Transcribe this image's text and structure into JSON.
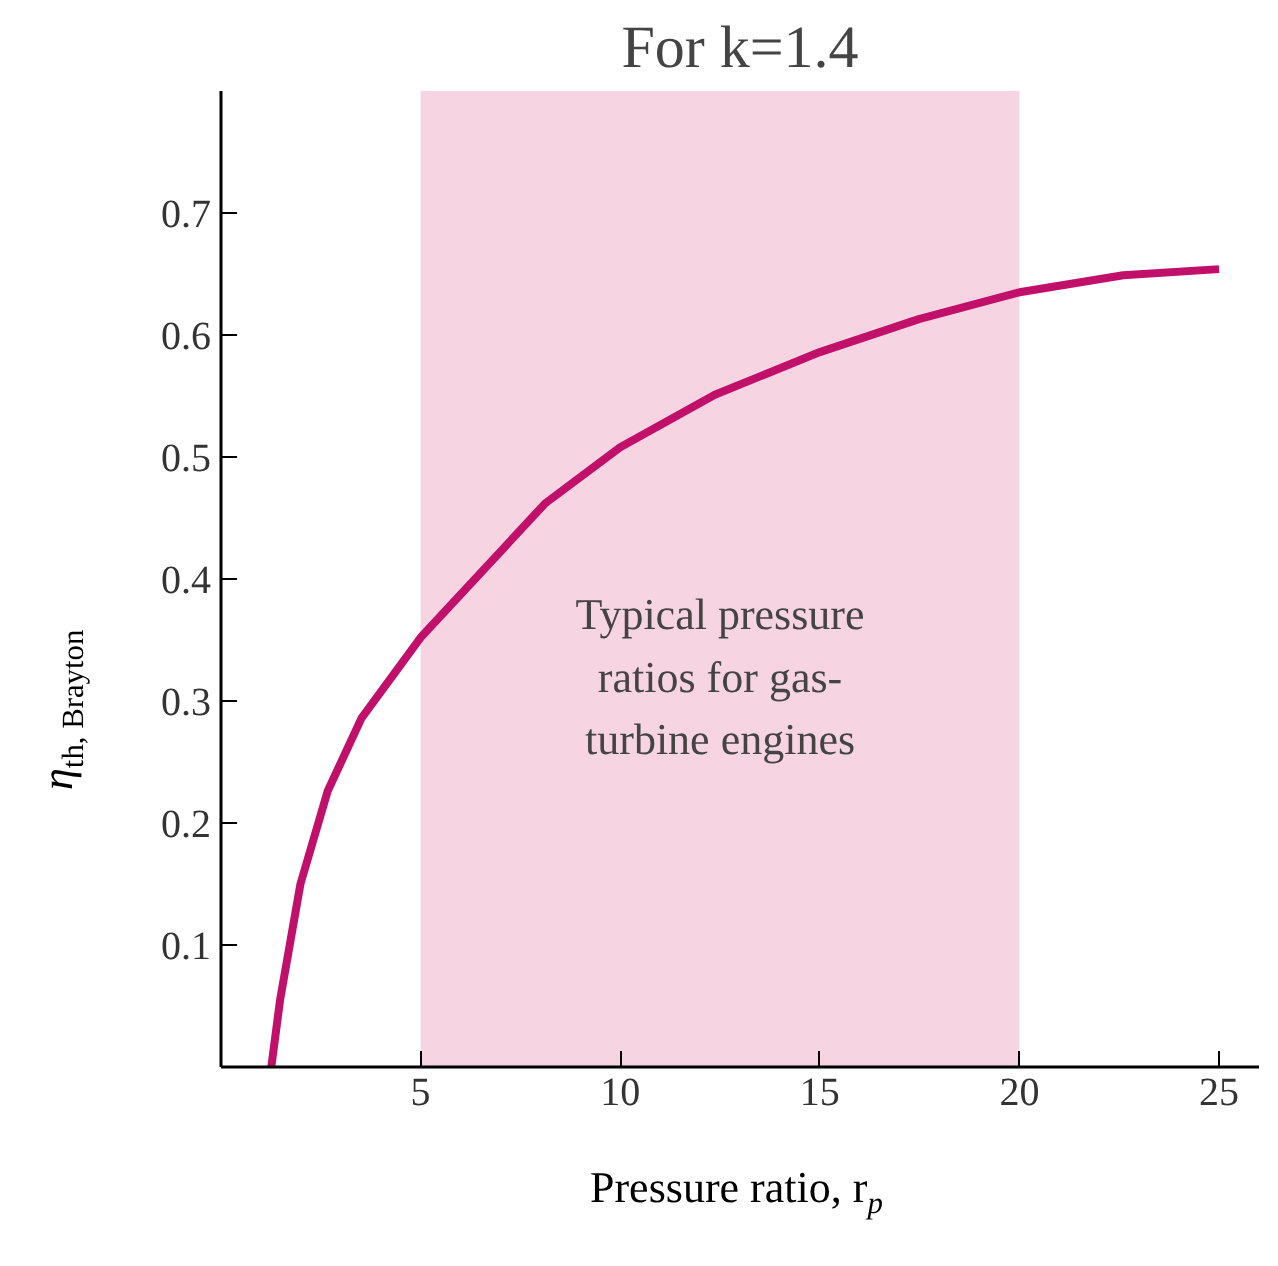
{
  "chart_data": {
    "type": "line",
    "title": "For k=1.4",
    "xlabel": "Pressure ratio, r$_{p}$",
    "ylabel": "η$_{th, Brayton}$",
    "x": [
      1.26,
      1.48,
      1.99,
      2.67,
      3.52,
      5.0,
      6.42,
      8.12,
      10,
      12.37,
      15,
      17.48,
      20,
      22.6,
      25
    ],
    "series": [
      {
        "color": "#c0106a",
        "values": [
          0,
          0.055,
          0.15,
          0.226,
          0.286,
          0.352,
          0.402,
          0.462,
          0.508,
          0.551,
          0.586,
          0.613,
          0.635,
          0.649,
          0.654
        ]
      }
    ],
    "xlim": [
      0,
      26
    ],
    "ylim": [
      0,
      0.8
    ],
    "xticks": [
      5,
      10,
      15,
      20,
      25
    ],
    "yticks": [
      0.1,
      0.2,
      0.3,
      0.4,
      0.5,
      0.6,
      0.7
    ],
    "bands": [
      {
        "axis": "x",
        "from": 5,
        "to": 20,
        "label": "Typical pressure\nratios for gas-\nturbine engines",
        "color": "#f7d4e1"
      }
    ],
    "grid": false,
    "marker": "none",
    "line_style": "solid"
  }
}
